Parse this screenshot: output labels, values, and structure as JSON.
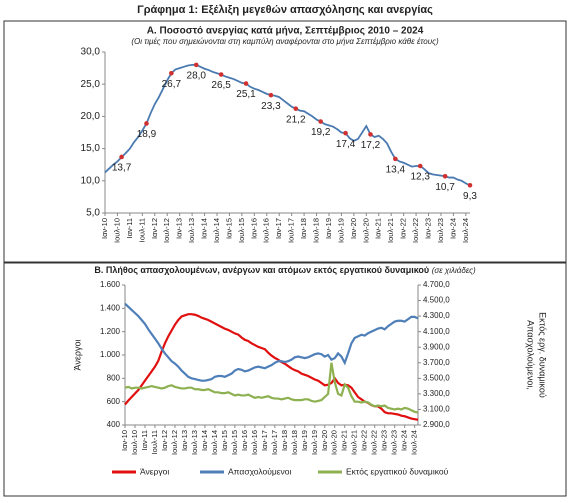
{
  "title": "Γράφημα 1: Εξέλιξη μεγεθών απασχόλησης και ανεργίας",
  "chart_data": [
    {
      "type": "line",
      "title": "Α. Ποσοστό ανεργίας κατά μήνα, Σεπτέμβριος 2010 – 2024",
      "subtitle": "(Οι τιμές που σημειώνονται στη καμπύλη αναφέρονται στο μήνα Σεπτέμβριο κάθε έτους)",
      "categories": [
        "Ιαν-10",
        null,
        null,
        "Ιουλ-10",
        null,
        null,
        "Ιαν-11",
        null,
        null,
        "Ιουλ-11",
        null,
        null,
        "Ιαν-12",
        null,
        null,
        "Ιουλ-12",
        null,
        null,
        "Ιαν-13",
        null,
        null,
        "Ιουλ-13",
        null,
        null,
        "Ιαν-14",
        null,
        null,
        "Ιουλ-14",
        null,
        null,
        "Ιαν-15",
        null,
        null,
        "Ιουλ-15",
        null,
        null,
        "Ιαν-16",
        null,
        null,
        "Ιουλ-16",
        null,
        null,
        "Ιαν-17",
        null,
        null,
        "Ιουλ-17",
        null,
        null,
        "Ιαν-18",
        null,
        null,
        "Ιουλ-18",
        null,
        null,
        "Ιαν-19",
        null,
        null,
        "Ιουλ-19",
        null,
        null,
        "Ιαν-20",
        null,
        null,
        "Ιουλ-20",
        null,
        null,
        "Ιαν-21",
        null,
        null,
        "Ιουλ-21",
        null,
        null,
        "Ιαν-22",
        null,
        null,
        "Ιουλ-22",
        null,
        null,
        "Ιαν-23",
        null,
        null,
        "Ιουλ-23",
        null,
        null,
        "Ιαν-24",
        null,
        null,
        "Ιουλ-24",
        null
      ],
      "series": [
        {
          "color": "#4a7ab0",
          "marker_color": "#d03030",
          "values": [
            11.3,
            11.9,
            12.5,
            13.0,
            13.7,
            14.3,
            15.0,
            16.0,
            16.8,
            17.8,
            18.9,
            20.5,
            21.9,
            23.0,
            24.3,
            25.6,
            26.7,
            27.3,
            27.5,
            27.7,
            27.9,
            28.0,
            28.0,
            27.7,
            27.4,
            27.2,
            26.9,
            26.7,
            26.5,
            26.2,
            26.0,
            25.8,
            25.5,
            25.2,
            25.1,
            24.6,
            24.3,
            24.1,
            23.8,
            23.5,
            23.3,
            23.2,
            23.0,
            22.5,
            22.0,
            21.5,
            21.2,
            20.9,
            20.8,
            20.4,
            20.0,
            19.5,
            19.2,
            18.8,
            18.6,
            18.4,
            18.0,
            17.5,
            17.4,
            16.6,
            16.2,
            16.5,
            17.5,
            18.5,
            17.2,
            16.8,
            17.0,
            16.5,
            15.8,
            14.5,
            13.4,
            13.0,
            12.8,
            12.5,
            12.2,
            12.3,
            12.3,
            11.8,
            11.2,
            11.0,
            10.9,
            10.8,
            10.7,
            10.5,
            10.5,
            10.2,
            10.0,
            9.6,
            9.3
          ],
          "value_labels": [
            null,
            null,
            null,
            null,
            "13,7",
            null,
            null,
            null,
            null,
            null,
            "18,9",
            null,
            null,
            null,
            null,
            null,
            "26,7",
            null,
            null,
            null,
            null,
            null,
            "28,0",
            null,
            null,
            null,
            null,
            null,
            "26,5",
            null,
            null,
            null,
            null,
            null,
            "25,1",
            null,
            null,
            null,
            null,
            null,
            "23,3",
            null,
            null,
            null,
            null,
            null,
            "21,2",
            null,
            null,
            null,
            null,
            null,
            "19,2",
            null,
            null,
            null,
            null,
            null,
            "17,4",
            null,
            null,
            null,
            null,
            null,
            "17,2",
            null,
            null,
            null,
            null,
            null,
            "13,4",
            null,
            null,
            null,
            null,
            null,
            "12,3",
            null,
            null,
            null,
            null,
            null,
            "10,7",
            null,
            null,
            null,
            null,
            null,
            "9,3"
          ]
        }
      ],
      "ylim": [
        5,
        30
      ],
      "yticks": [
        {
          "value": 5,
          "label": "5,0"
        },
        {
          "value": 10,
          "label": "10,0"
        },
        {
          "value": 15,
          "label": "15,0"
        },
        {
          "value": 20,
          "label": "20,0"
        },
        {
          "value": 25,
          "label": "25,0"
        },
        {
          "value": 30,
          "label": "30,0"
        }
      ]
    },
    {
      "type": "line",
      "title": "Β. Πλήθος απασχολουμένων, ανέργων και ατόμων εκτός εργατικού δυναμικού",
      "subtitle": "(σε χιλιάδες)",
      "ylabel": "Άνεργοι",
      "y2label": [
        "Απασχολούμενοι,",
        "Εκτός εργ. δυναμικού"
      ],
      "categories": [
        "Ιαν-10",
        null,
        null,
        "Ιουλ-10",
        null,
        null,
        "Ιαν-11",
        null,
        null,
        "Ιουλ-11",
        null,
        null,
        "Ιαν-12",
        null,
        null,
        "Ιουλ-12",
        null,
        null,
        "Ιαν-13",
        null,
        null,
        "Ιουλ-13",
        null,
        null,
        "Ιαν-14",
        null,
        null,
        "Ιουλ-14",
        null,
        null,
        "Ιαν-15",
        null,
        null,
        "Ιουλ-15",
        null,
        null,
        "Ιαν-16",
        null,
        null,
        "Ιουλ-16",
        null,
        null,
        "Ιαν-17",
        null,
        null,
        "Ιουλ-17",
        null,
        null,
        "Ιαν-18",
        null,
        null,
        "Ιουλ-18",
        null,
        null,
        "Ιαν-19",
        null,
        null,
        "Ιουλ-19",
        null,
        null,
        "Ιαν-20",
        null,
        null,
        "Ιουλ-20",
        null,
        null,
        "Ιαν-21",
        null,
        null,
        "Ιουλ-21",
        null,
        null,
        "Ιαν-22",
        null,
        null,
        "Ιουλ-22",
        null,
        null,
        "Ιαν-23",
        null,
        null,
        "Ιουλ-23",
        null,
        null,
        "Ιαν-24",
        null,
        null,
        "Ιουλ-24",
        null
      ],
      "series": [
        {
          "name": "Άνεργοι",
          "color": "#e01010",
          "values": [
            575,
            610,
            640,
            670,
            700,
            740,
            780,
            820,
            860,
            900,
            950,
            1030,
            1100,
            1160,
            1210,
            1260,
            1300,
            1330,
            1340,
            1350,
            1350,
            1345,
            1335,
            1320,
            1310,
            1300,
            1285,
            1270,
            1255,
            1240,
            1225,
            1215,
            1200,
            1185,
            1175,
            1150,
            1130,
            1120,
            1100,
            1085,
            1070,
            1060,
            1050,
            1020,
            995,
            975,
            960,
            940,
            925,
            905,
            885,
            870,
            860,
            840,
            830,
            820,
            805,
            790,
            780,
            760,
            740,
            745,
            760,
            800,
            760,
            740,
            745,
            740,
            720,
            680,
            640,
            620,
            600,
            590,
            570,
            560,
            560,
            540,
            510,
            500,
            500,
            495,
            490,
            480,
            475,
            465,
            455,
            450,
            445
          ]
        },
        {
          "name": "Απασχολούμενοι",
          "color": "#4f7fb8",
          "axis": "y2",
          "values": [
            4460,
            4420,
            4380,
            4340,
            4300,
            4250,
            4200,
            4130,
            4070,
            4010,
            3950,
            3880,
            3820,
            3770,
            3720,
            3690,
            3650,
            3600,
            3560,
            3520,
            3500,
            3490,
            3480,
            3470,
            3470,
            3480,
            3490,
            3520,
            3530,
            3530,
            3520,
            3540,
            3560,
            3600,
            3620,
            3610,
            3590,
            3600,
            3620,
            3640,
            3650,
            3640,
            3630,
            3650,
            3670,
            3700,
            3720,
            3720,
            3710,
            3720,
            3740,
            3770,
            3780,
            3770,
            3760,
            3770,
            3790,
            3810,
            3820,
            3810,
            3780,
            3800,
            3740,
            3760,
            3820,
            3780,
            3700,
            3820,
            3950,
            4020,
            4040,
            4060,
            4050,
            4080,
            4100,
            4120,
            4140,
            4150,
            4130,
            4170,
            4200,
            4230,
            4240,
            4240,
            4230,
            4260,
            4290,
            4290,
            4270
          ]
        },
        {
          "name": "Εκτός εργατικού δυναμικού",
          "color": "#8db050",
          "axis": "y2",
          "values": [
            3380,
            3390,
            3370,
            3380,
            3380,
            3370,
            3380,
            3390,
            3400,
            3390,
            3380,
            3370,
            3380,
            3400,
            3410,
            3390,
            3380,
            3370,
            3370,
            3380,
            3380,
            3360,
            3360,
            3350,
            3350,
            3360,
            3340,
            3320,
            3320,
            3310,
            3310,
            3320,
            3300,
            3280,
            3290,
            3280,
            3280,
            3290,
            3270,
            3250,
            3260,
            3250,
            3260,
            3270,
            3250,
            3240,
            3240,
            3230,
            3240,
            3250,
            3230,
            3220,
            3220,
            3220,
            3230,
            3230,
            3210,
            3200,
            3210,
            3220,
            3260,
            3300,
            3700,
            3450,
            3300,
            3280,
            3420,
            3380,
            3270,
            3200,
            3200,
            3190,
            3200,
            3190,
            3160,
            3140,
            3150,
            3140,
            3150,
            3120,
            3110,
            3100,
            3110,
            3100,
            3120,
            3110,
            3090,
            3070,
            3060
          ]
        }
      ],
      "ylim": [
        400,
        1600
      ],
      "yticks": [
        {
          "value": 400,
          "label": "400"
        },
        {
          "value": 600,
          "label": "600"
        },
        {
          "value": 800,
          "label": "800"
        },
        {
          "value": 1000,
          "label": "1.000"
        },
        {
          "value": 1200,
          "label": "1.200"
        },
        {
          "value": 1400,
          "label": "1.400"
        },
        {
          "value": 1600,
          "label": "1.600"
        }
      ],
      "y2lim": [
        2900,
        4700
      ],
      "y2ticks": [
        {
          "value": 2900,
          "label": "2.900,0"
        },
        {
          "value": 3100,
          "label": "3.100,0"
        },
        {
          "value": 3300,
          "label": "3.300,0"
        },
        {
          "value": 3500,
          "label": "3.500,0"
        },
        {
          "value": 3700,
          "label": "3.700,0"
        },
        {
          "value": 3900,
          "label": "3.900,0"
        },
        {
          "value": 4100,
          "label": "4.100,0"
        },
        {
          "value": 4300,
          "label": "4.300,0"
        },
        {
          "value": 4500,
          "label": "4.500,0"
        },
        {
          "value": 4700,
          "label": "4.700,0"
        }
      ],
      "legend": "bottom"
    }
  ]
}
